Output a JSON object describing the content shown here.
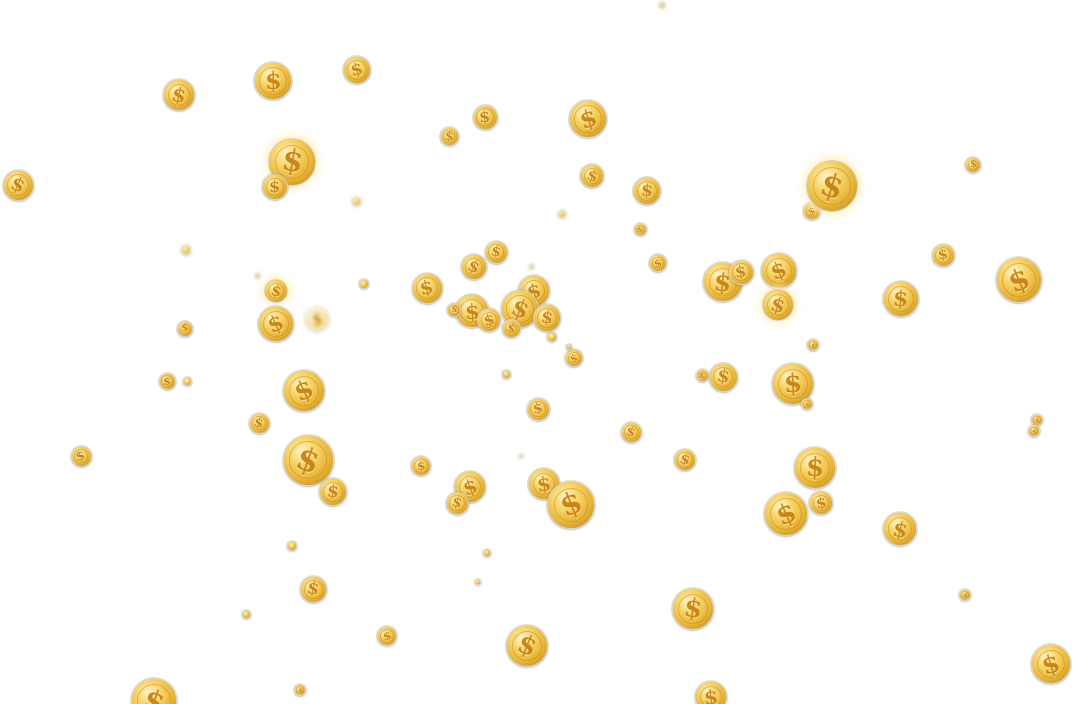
{
  "scene": {
    "background": "#ffffff",
    "coin_symbol": "$",
    "coin_colors": {
      "highlight": "#fff6c8",
      "gold": "#e6b437",
      "edge": "#b07915",
      "symbol": "#c9861a"
    }
  }
}
